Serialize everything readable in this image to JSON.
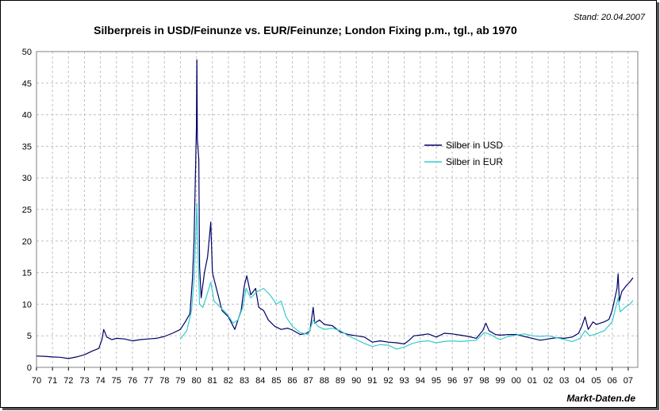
{
  "chart_data": {
    "type": "line",
    "title": "Silberpreis in USD/Feinunze vs. EUR/Feinunze; London Fixing p.m., tgl., ab 1970",
    "stand": "Stand: 20.04.2007",
    "source": "Markt-Daten.de",
    "xlabel": "",
    "ylabel": "",
    "xlim": [
      1970,
      2007.6
    ],
    "ylim": [
      0,
      50
    ],
    "y_ticks": [
      "0",
      "5",
      "10",
      "15",
      "20",
      "25",
      "30",
      "35",
      "40",
      "45",
      "50"
    ],
    "x_ticks": [
      "70",
      "71",
      "72",
      "73",
      "74",
      "75",
      "76",
      "77",
      "78",
      "79",
      "80",
      "81",
      "82",
      "83",
      "84",
      "85",
      "86",
      "87",
      "88",
      "89",
      "90",
      "91",
      "92",
      "93",
      "94",
      "95",
      "96",
      "97",
      "98",
      "99",
      "00",
      "01",
      "02",
      "03",
      "04",
      "05",
      "06",
      "07"
    ],
    "grid": true,
    "legend_position": "right-center",
    "series": [
      {
        "name": "Silber in USD",
        "color": "#000066",
        "points": [
          [
            1970.0,
            1.8
          ],
          [
            1970.5,
            1.75
          ],
          [
            1971.0,
            1.65
          ],
          [
            1971.5,
            1.6
          ],
          [
            1972.0,
            1.4
          ],
          [
            1972.5,
            1.65
          ],
          [
            1973.0,
            2.0
          ],
          [
            1973.5,
            2.6
          ],
          [
            1973.9,
            3.0
          ],
          [
            1974.1,
            4.5
          ],
          [
            1974.2,
            6.0
          ],
          [
            1974.4,
            4.8
          ],
          [
            1974.7,
            4.4
          ],
          [
            1975.0,
            4.6
          ],
          [
            1975.5,
            4.5
          ],
          [
            1976.0,
            4.2
          ],
          [
            1976.5,
            4.4
          ],
          [
            1977.0,
            4.5
          ],
          [
            1977.5,
            4.6
          ],
          [
            1978.0,
            4.9
          ],
          [
            1978.5,
            5.4
          ],
          [
            1979.0,
            6.0
          ],
          [
            1979.3,
            7.2
          ],
          [
            1979.6,
            8.5
          ],
          [
            1979.75,
            14.0
          ],
          [
            1979.85,
            20.0
          ],
          [
            1979.95,
            32.0
          ],
          [
            1980.0,
            38.0
          ],
          [
            1980.03,
            48.7
          ],
          [
            1980.06,
            36.0
          ],
          [
            1980.15,
            33.0
          ],
          [
            1980.2,
            16.0
          ],
          [
            1980.3,
            11.0
          ],
          [
            1980.5,
            15.0
          ],
          [
            1980.7,
            17.5
          ],
          [
            1980.9,
            23.0
          ],
          [
            1981.0,
            15.0
          ],
          [
            1981.3,
            12.0
          ],
          [
            1981.6,
            9.0
          ],
          [
            1982.0,
            8.0
          ],
          [
            1982.4,
            6.0
          ],
          [
            1982.6,
            7.5
          ],
          [
            1982.8,
            9.0
          ],
          [
            1983.0,
            13.0
          ],
          [
            1983.15,
            14.5
          ],
          [
            1983.4,
            11.5
          ],
          [
            1983.7,
            12.5
          ],
          [
            1983.9,
            9.5
          ],
          [
            1984.2,
            9.0
          ],
          [
            1984.5,
            7.5
          ],
          [
            1984.9,
            6.5
          ],
          [
            1985.3,
            6.0
          ],
          [
            1985.7,
            6.2
          ],
          [
            1986.0,
            5.9
          ],
          [
            1986.5,
            5.2
          ],
          [
            1986.9,
            5.4
          ],
          [
            1987.1,
            5.8
          ],
          [
            1987.3,
            9.5
          ],
          [
            1987.4,
            7.0
          ],
          [
            1987.7,
            7.5
          ],
          [
            1988.0,
            6.8
          ],
          [
            1988.5,
            6.6
          ],
          [
            1989.0,
            5.6
          ],
          [
            1989.5,
            5.2
          ],
          [
            1990.0,
            5.0
          ],
          [
            1990.5,
            4.8
          ],
          [
            1991.0,
            4.0
          ],
          [
            1991.5,
            4.2
          ],
          [
            1992.0,
            4.0
          ],
          [
            1992.5,
            3.9
          ],
          [
            1993.0,
            3.7
          ],
          [
            1993.3,
            4.3
          ],
          [
            1993.6,
            5.0
          ],
          [
            1994.0,
            5.1
          ],
          [
            1994.5,
            5.3
          ],
          [
            1995.0,
            4.8
          ],
          [
            1995.5,
            5.4
          ],
          [
            1996.0,
            5.3
          ],
          [
            1996.5,
            5.1
          ],
          [
            1997.0,
            4.9
          ],
          [
            1997.5,
            4.6
          ],
          [
            1997.9,
            5.8
          ],
          [
            1998.1,
            7.0
          ],
          [
            1998.3,
            5.8
          ],
          [
            1998.7,
            5.2
          ],
          [
            1999.0,
            5.1
          ],
          [
            1999.5,
            5.2
          ],
          [
            2000.0,
            5.2
          ],
          [
            2000.5,
            4.9
          ],
          [
            2001.0,
            4.6
          ],
          [
            2001.5,
            4.3
          ],
          [
            2002.0,
            4.5
          ],
          [
            2002.5,
            4.7
          ],
          [
            2003.0,
            4.6
          ],
          [
            2003.5,
            4.8
          ],
          [
            2003.9,
            5.4
          ],
          [
            2004.1,
            6.5
          ],
          [
            2004.3,
            8.0
          ],
          [
            2004.5,
            6.0
          ],
          [
            2004.8,
            7.2
          ],
          [
            2005.0,
            6.8
          ],
          [
            2005.5,
            7.2
          ],
          [
            2005.8,
            7.6
          ],
          [
            2006.0,
            9.0
          ],
          [
            2006.3,
            12.5
          ],
          [
            2006.37,
            14.8
          ],
          [
            2006.45,
            10.5
          ],
          [
            2006.6,
            12.0
          ],
          [
            2006.9,
            13.0
          ],
          [
            2007.1,
            13.5
          ],
          [
            2007.3,
            14.2
          ]
        ]
      },
      {
        "name": "Silber in EUR",
        "color": "#33cccc",
        "points": [
          [
            1979.0,
            4.5
          ],
          [
            1979.4,
            5.8
          ],
          [
            1979.7,
            9.0
          ],
          [
            1979.85,
            14.0
          ],
          [
            1979.95,
            20.0
          ],
          [
            1980.03,
            26.0
          ],
          [
            1980.08,
            20.0
          ],
          [
            1980.2,
            10.0
          ],
          [
            1980.4,
            9.5
          ],
          [
            1980.6,
            11.0
          ],
          [
            1980.9,
            13.5
          ],
          [
            1981.1,
            10.5
          ],
          [
            1981.5,
            9.5
          ],
          [
            1981.9,
            8.5
          ],
          [
            1982.3,
            7.0
          ],
          [
            1982.6,
            7.5
          ],
          [
            1982.9,
            9.5
          ],
          [
            1983.1,
            12.5
          ],
          [
            1983.4,
            11.0
          ],
          [
            1983.8,
            12.0
          ],
          [
            1984.2,
            12.5
          ],
          [
            1984.6,
            11.5
          ],
          [
            1985.0,
            10.0
          ],
          [
            1985.3,
            10.5
          ],
          [
            1985.6,
            8.0
          ],
          [
            1986.0,
            6.5
          ],
          [
            1986.5,
            5.5
          ],
          [
            1987.0,
            5.2
          ],
          [
            1987.3,
            7.5
          ],
          [
            1987.6,
            6.5
          ],
          [
            1988.0,
            6.0
          ],
          [
            1988.5,
            6.2
          ],
          [
            1989.0,
            5.8
          ],
          [
            1989.5,
            5.0
          ],
          [
            1990.0,
            4.4
          ],
          [
            1990.5,
            3.8
          ],
          [
            1991.0,
            3.3
          ],
          [
            1991.5,
            3.6
          ],
          [
            1992.0,
            3.5
          ],
          [
            1992.5,
            2.9
          ],
          [
            1993.0,
            3.2
          ],
          [
            1993.5,
            3.8
          ],
          [
            1994.0,
            4.1
          ],
          [
            1994.5,
            4.2
          ],
          [
            1995.0,
            3.9
          ],
          [
            1995.5,
            4.1
          ],
          [
            1996.0,
            4.2
          ],
          [
            1996.5,
            4.1
          ],
          [
            1997.0,
            4.2
          ],
          [
            1997.5,
            4.3
          ],
          [
            1998.0,
            5.5
          ],
          [
            1998.4,
            5.2
          ],
          [
            1998.8,
            4.6
          ],
          [
            1999.0,
            4.4
          ],
          [
            1999.5,
            4.9
          ],
          [
            2000.0,
            5.1
          ],
          [
            2000.5,
            5.3
          ],
          [
            2001.0,
            5.0
          ],
          [
            2001.5,
            4.9
          ],
          [
            2002.0,
            5.0
          ],
          [
            2002.5,
            4.7
          ],
          [
            2003.0,
            4.4
          ],
          [
            2003.5,
            4.1
          ],
          [
            2004.0,
            4.6
          ],
          [
            2004.3,
            5.8
          ],
          [
            2004.6,
            5.0
          ],
          [
            2005.0,
            5.3
          ],
          [
            2005.5,
            5.8
          ],
          [
            2006.0,
            7.2
          ],
          [
            2006.37,
            11.0
          ],
          [
            2006.5,
            8.8
          ],
          [
            2006.8,
            9.5
          ],
          [
            2007.1,
            10.0
          ],
          [
            2007.3,
            10.6
          ]
        ]
      }
    ]
  }
}
